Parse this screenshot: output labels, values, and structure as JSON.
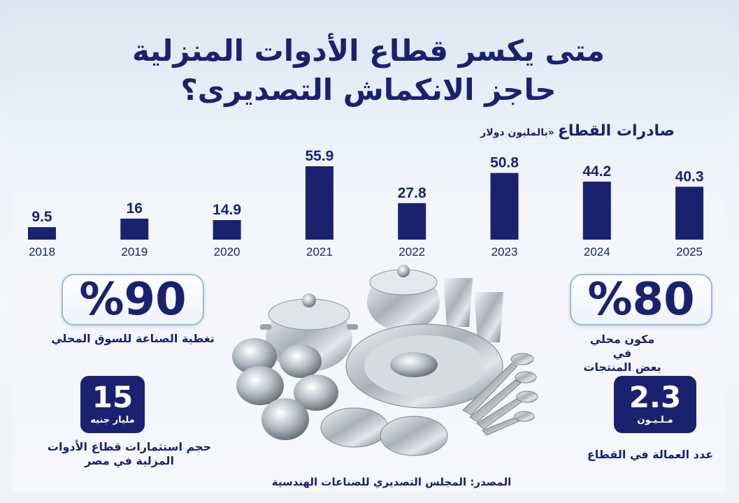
{
  "headline": {
    "line1": "متى يكسر قطاع الأدوات المنزلية",
    "line2": "حاجز الانكماش التصديرى؟"
  },
  "chart_data": {
    "type": "bar",
    "title": "صادرات القطاع",
    "subtitle": "«بالمليون دولار",
    "categories": [
      "2018",
      "2019",
      "2020",
      "2021",
      "2022",
      "2023",
      "2024",
      "2025"
    ],
    "values": [
      9.5,
      16,
      14.9,
      55.9,
      27.8,
      50.8,
      44.2,
      40.3
    ],
    "value_labels": [
      "9.5",
      "16",
      "14.9",
      "55.9",
      "27.8",
      "50.8",
      "44.2",
      "40.3"
    ],
    "bar_color": "#1a2270",
    "grid": false
  },
  "stats": {
    "market_coverage": {
      "value": "%90",
      "label": "تغطية الصناعة للسوق المحلي"
    },
    "local_component": {
      "value": "%80",
      "label_line1": "مكون محلي في",
      "label_line2": "بعض المنتجات"
    },
    "investments": {
      "value": "15",
      "unit": "مليار جنيه",
      "label_line1": "حجم استثمارات قطاع الأدوات",
      "label_line2": "المزلية في مصر"
    },
    "employment": {
      "value": "2.3",
      "unit": "مـلـيـون",
      "label": "عدد العمالة في القطاع"
    }
  },
  "source": "المصدر: المجلس التصديري للصناعات الهندسية",
  "colors": {
    "navy": "#1a2270",
    "box_border": "#9ab7db"
  }
}
